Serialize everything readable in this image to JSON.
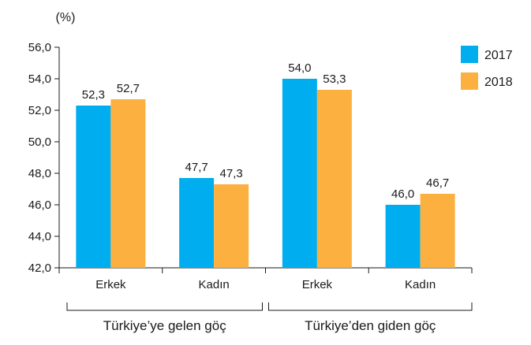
{
  "chart_data": {
    "type": "bar",
    "unit_label": "(%)",
    "ylim": [
      42,
      56
    ],
    "yticks": [
      "42,0",
      "44,0",
      "46,0",
      "48,0",
      "50,0",
      "52,0",
      "54,0",
      "56,0"
    ],
    "grid": false,
    "legend_position": "top-right",
    "categories": [
      "Erkek",
      "Kadın",
      "Erkek",
      "Kadın"
    ],
    "groups": [
      "Türkiye’ye gelen göç",
      "Türkiye’den giden göç"
    ],
    "series": [
      {
        "name": "2017",
        "color": "#00AEEF",
        "values": [
          52.3,
          47.7,
          54.0,
          46.0
        ],
        "labels": [
          "52,3",
          "47,7",
          "54,0",
          "46,0"
        ]
      },
      {
        "name": "2018",
        "color": "#FBB040",
        "values": [
          52.7,
          47.3,
          53.3,
          46.7
        ],
        "labels": [
          "52,7",
          "47,3",
          "53,3",
          "46,7"
        ]
      }
    ]
  }
}
